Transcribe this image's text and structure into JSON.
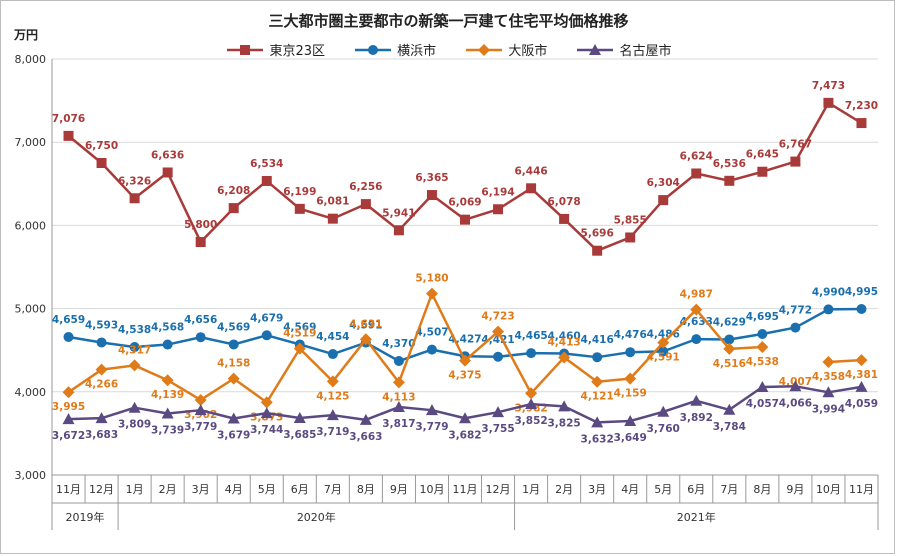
{
  "chart_data": {
    "type": "line",
    "title": "三大都市圏主要都市の新築一戸建て住宅平均価格推移",
    "ylabel": "万円",
    "ylim": [
      3000,
      8000
    ],
    "yticks": [
      "3,000",
      "4,000",
      "5,000",
      "6,000",
      "7,000",
      "8,000"
    ],
    "yticks_values": [
      3000,
      4000,
      5000,
      6000,
      7000,
      8000
    ],
    "grid": true,
    "legend_position": "top",
    "categories": [
      "11月",
      "12月",
      "1月",
      "2月",
      "3月",
      "4月",
      "5月",
      "6月",
      "7月",
      "8月",
      "9月",
      "10月",
      "11月",
      "12月",
      "1月",
      "2月",
      "3月",
      "4月",
      "5月",
      "6月",
      "7月",
      "8月",
      "9月",
      "10月",
      "11月"
    ],
    "year_groups": [
      {
        "label": "2019年",
        "start": 0,
        "end": 1
      },
      {
        "label": "2020年",
        "start": 2,
        "end": 13
      },
      {
        "label": "2021年",
        "start": 14,
        "end": 24
      }
    ],
    "series": [
      {
        "name": "東京23区",
        "color": "#a93a3a",
        "marker": "square",
        "values": [
          7076,
          6750,
          6326,
          6636,
          5800,
          6208,
          6534,
          6199,
          6081,
          6256,
          5941,
          6365,
          6069,
          6194,
          6446,
          6078,
          5696,
          5855,
          6304,
          6624,
          6536,
          6645,
          6767,
          7473,
          7230
        ],
        "labels": [
          "7,076",
          "6,750",
          "6,326",
          "6,636",
          "5,800",
          "6,208",
          "6,534",
          "6,199",
          "6,081",
          "6,256",
          "5,941",
          "6,365",
          "6,069",
          "6,194",
          "6,446",
          "6,078",
          "5,696",
          "5,855",
          "6,304",
          "6,624",
          "6,536",
          "6,645",
          "6,767",
          "7,473",
          "7,230"
        ]
      },
      {
        "name": "横浜市",
        "color": "#1a6fae",
        "marker": "circle",
        "values": [
          4659,
          4593,
          4538,
          4568,
          4656,
          4569,
          4679,
          4569,
          4454,
          4591,
          4370,
          4507,
          4427,
          4421,
          4465,
          4460,
          4416,
          4476,
          4486,
          4633,
          4629,
          4695,
          4772,
          4990,
          4995
        ],
        "labels": [
          "4,659",
          "4,593",
          "4,538",
          "4,568",
          "4,656",
          "4,569",
          "4,679",
          "4,569",
          "4,454",
          "4,591",
          "4,370",
          "4,507",
          "4,427",
          "4,421",
          "4,465",
          "4,460",
          "4,416",
          "4,476",
          "4,486",
          "4,633",
          "4,629",
          "4,695",
          "4,772",
          "4,990",
          "4,995"
        ]
      },
      {
        "name": "大阪市",
        "color": "#e07b1a",
        "marker": "diamond",
        "values": [
          3995,
          4266,
          4317,
          4139,
          3902,
          4158,
          3873,
          4519,
          4125,
          4631,
          4113,
          5180,
          4375,
          4723,
          3982,
          4413,
          4121,
          4159,
          4591,
          4987,
          4516,
          4538,
          null,
          4358,
          4381
        ],
        "labels": [
          "3,995",
          "4,266",
          "4,317",
          "4,139",
          "3,902",
          "4,158",
          "3,873",
          "4,519",
          "4,125",
          "4,631",
          "4,113",
          "5,180",
          "4,375",
          "4,723",
          "3,982",
          "4,413",
          "4,121",
          "4,159",
          "4,591",
          "4,987",
          "4,516",
          "4,538",
          "4,007",
          "4,358",
          "4,381"
        ]
      },
      {
        "name": "名古屋市",
        "color": "#5b4a82",
        "marker": "triangle",
        "values": [
          3672,
          3683,
          3809,
          3739,
          3779,
          3679,
          3744,
          3685,
          3719,
          3663,
          3817,
          3779,
          3682,
          3755,
          3852,
          3825,
          3632,
          3649,
          3760,
          3892,
          3784,
          4057,
          4066,
          3994,
          4059
        ],
        "labels": [
          "3,672",
          "3,683",
          "3,809",
          "3,739",
          "3,779",
          "3,679",
          "3,744",
          "3,685",
          "3,719",
          "3,663",
          "3,817",
          "3,779",
          "3,682",
          "3,755",
          "3,852",
          "3,825",
          "3,632",
          "3,649",
          "3,760",
          "3,892",
          "3,784",
          "4,057",
          "4,066",
          "3,994",
          "4,059"
        ]
      }
    ]
  }
}
